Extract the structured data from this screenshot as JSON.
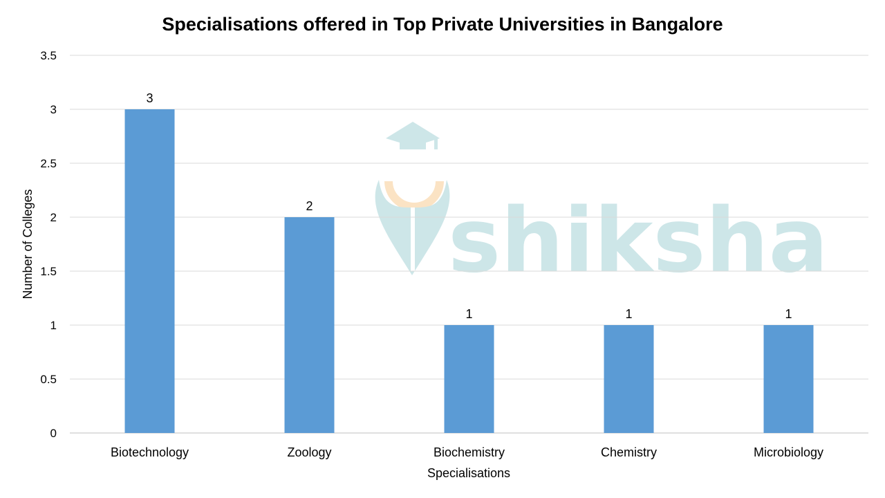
{
  "chart_data": {
    "type": "bar",
    "title": "Specialisations offered in Top Private Universities in Bangalore",
    "xlabel": "Specialisations",
    "ylabel": "Number of Colleges",
    "categories": [
      "Biotechnology",
      "Zoology",
      "Biochemistry",
      "Chemistry",
      "Microbiology"
    ],
    "values": [
      3,
      2,
      1,
      1,
      1
    ],
    "data_labels": [
      "3",
      "2",
      "1",
      "1",
      "1"
    ],
    "ylim": [
      0,
      3.5
    ],
    "yticks": [
      "0",
      "0.5",
      "1",
      "1.5",
      "2",
      "2.5",
      "3",
      "3.5"
    ],
    "grid": true,
    "legend": "none",
    "bar_color": "#5b9bd5"
  },
  "watermark": {
    "text": "shiksha",
    "color": "#cde6e8",
    "accent_color": "#fbe3c4"
  }
}
